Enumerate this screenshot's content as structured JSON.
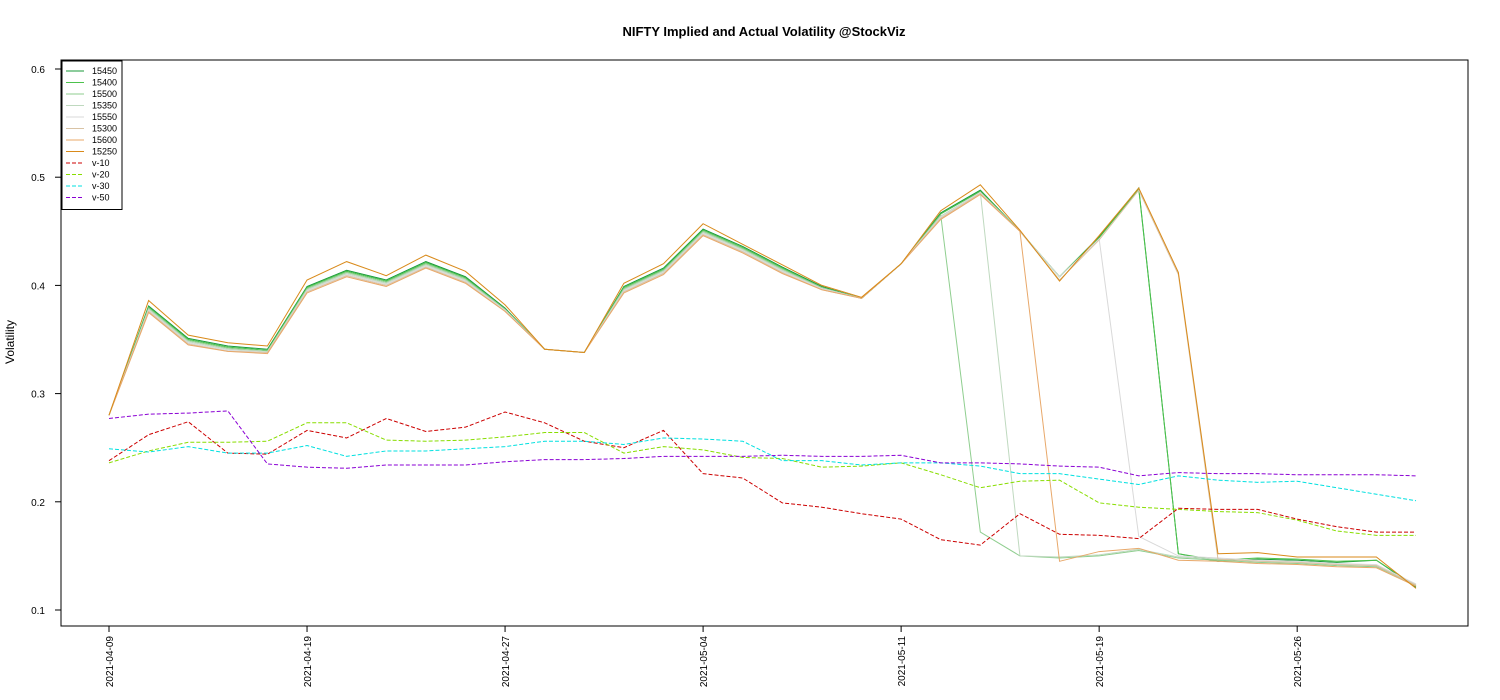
{
  "chart_data": {
    "type": "line",
    "title": "NIFTY Implied and Actual Volatility @StockViz",
    "ylabel": "Volatility",
    "xlabel": "",
    "ylim": [
      0.1,
      0.6
    ],
    "yticks": [
      "0.1",
      "0.2",
      "0.3",
      "0.4",
      "0.5",
      "0.6"
    ],
    "legend_position": "top-left",
    "grid": false,
    "x": [
      "2021-04-09",
      "2021-04-12",
      "2021-04-13",
      "2021-04-15",
      "2021-04-16",
      "2021-04-19",
      "2021-04-20",
      "2021-04-22",
      "2021-04-23",
      "2021-04-26",
      "2021-04-27",
      "2021-04-28",
      "2021-04-29",
      "2021-04-30",
      "2021-05-03",
      "2021-05-04",
      "2021-05-05",
      "2021-05-06",
      "2021-05-07",
      "2021-05-10",
      "2021-05-11",
      "2021-05-12",
      "2021-05-14",
      "2021-05-17",
      "2021-05-18",
      "2021-05-19",
      "2021-05-20",
      "2021-05-21",
      "2021-05-24",
      "2021-05-25",
      "2021-05-26",
      "2021-05-27",
      "2021-05-28",
      "2021-05-31"
    ],
    "xtick_labels": [
      "2021-04-09",
      "2021-04-19",
      "2021-04-27",
      "2021-05-04",
      "2021-05-11",
      "2021-05-19",
      "2021-05-26"
    ],
    "xtick_index": [
      0,
      5,
      10,
      15,
      20,
      25,
      30
    ],
    "series": [
      {
        "name": "15450",
        "color": "#1a9a3a",
        "dash": "solid",
        "values": [
          0.28,
          0.381,
          0.351,
          0.344,
          0.341,
          0.399,
          0.414,
          0.405,
          0.422,
          0.408,
          0.379,
          0.341,
          0.338,
          0.399,
          0.416,
          0.452,
          0.436,
          0.417,
          0.399,
          0.388,
          0.42,
          0.467,
          0.488,
          0.45,
          0.408,
          0.445,
          0.49,
          0.152,
          0.145,
          0.147,
          0.146,
          0.144,
          0.146,
          0.121
        ]
      },
      {
        "name": "15400",
        "color": "#4cc24c",
        "dash": "solid",
        "values": [
          0.28,
          0.38,
          0.35,
          0.343,
          0.34,
          0.398,
          0.413,
          0.404,
          0.421,
          0.407,
          0.378,
          0.341,
          0.338,
          0.398,
          0.415,
          0.451,
          0.435,
          0.416,
          0.398,
          0.388,
          0.42,
          0.466,
          0.487,
          0.45,
          0.408,
          0.444,
          0.489,
          0.152,
          0.146,
          0.148,
          0.147,
          0.145,
          0.146,
          0.122
        ]
      },
      {
        "name": "15500",
        "color": "#8fce8f",
        "dash": "solid",
        "values": [
          0.28,
          0.379,
          0.349,
          0.342,
          0.339,
          0.397,
          0.412,
          0.403,
          0.42,
          0.406,
          0.378,
          0.341,
          0.338,
          0.397,
          0.414,
          0.45,
          0.434,
          0.415,
          0.398,
          0.388,
          0.42,
          0.465,
          0.172,
          0.15,
          0.148,
          0.15,
          0.155,
          0.148,
          0.146,
          0.144,
          0.143,
          0.141,
          0.14,
          0.123
        ]
      },
      {
        "name": "15350",
        "color": "#bfd9bf",
        "dash": "solid",
        "values": [
          0.28,
          0.378,
          0.348,
          0.341,
          0.339,
          0.396,
          0.411,
          0.402,
          0.419,
          0.405,
          0.377,
          0.341,
          0.338,
          0.396,
          0.413,
          0.449,
          0.433,
          0.414,
          0.397,
          0.388,
          0.42,
          0.464,
          0.486,
          0.15,
          0.149,
          0.151,
          0.156,
          0.149,
          0.147,
          0.145,
          0.144,
          0.142,
          0.141,
          0.124
        ]
      },
      {
        "name": "15550",
        "color": "#d9d9d9",
        "dash": "solid",
        "values": [
          0.28,
          0.377,
          0.347,
          0.34,
          0.338,
          0.395,
          0.41,
          0.401,
          0.418,
          0.404,
          0.377,
          0.341,
          0.338,
          0.395,
          0.412,
          0.448,
          0.432,
          0.413,
          0.397,
          0.388,
          0.42,
          0.463,
          0.486,
          0.45,
          0.408,
          0.443,
          0.168,
          0.15,
          0.148,
          0.146,
          0.145,
          0.143,
          0.142,
          0.124
        ]
      },
      {
        "name": "15300",
        "color": "#d9c3a5",
        "dash": "solid",
        "values": [
          0.28,
          0.376,
          0.346,
          0.339,
          0.338,
          0.394,
          0.409,
          0.4,
          0.417,
          0.403,
          0.376,
          0.341,
          0.338,
          0.394,
          0.411,
          0.447,
          0.431,
          0.412,
          0.396,
          0.388,
          0.42,
          0.462,
          0.485,
          0.45,
          0.405,
          0.442,
          0.488,
          0.41,
          0.147,
          0.145,
          0.144,
          0.142,
          0.141,
          0.123
        ]
      },
      {
        "name": "15600",
        "color": "#e8a86a",
        "dash": "solid",
        "values": [
          0.28,
          0.375,
          0.345,
          0.339,
          0.337,
          0.393,
          0.408,
          0.399,
          0.416,
          0.402,
          0.376,
          0.341,
          0.338,
          0.393,
          0.41,
          0.446,
          0.43,
          0.411,
          0.396,
          0.388,
          0.42,
          0.461,
          0.484,
          0.45,
          0.145,
          0.154,
          0.157,
          0.146,
          0.145,
          0.143,
          0.142,
          0.14,
          0.139,
          0.122
        ]
      },
      {
        "name": "15250",
        "color": "#d98a1a",
        "dash": "solid",
        "values": [
          0.28,
          0.386,
          0.354,
          0.347,
          0.344,
          0.405,
          0.422,
          0.409,
          0.428,
          0.413,
          0.382,
          0.341,
          0.338,
          0.402,
          0.42,
          0.457,
          0.438,
          0.419,
          0.4,
          0.389,
          0.42,
          0.469,
          0.493,
          0.451,
          0.404,
          0.446,
          0.49,
          0.412,
          0.152,
          0.153,
          0.149,
          0.149,
          0.149,
          0.12
        ]
      },
      {
        "name": "v-10",
        "color": "#cc0000",
        "dash": "4 2",
        "values": [
          0.238,
          0.262,
          0.274,
          0.245,
          0.244,
          0.266,
          0.259,
          0.277,
          0.265,
          0.269,
          0.283,
          0.273,
          0.256,
          0.25,
          0.266,
          0.226,
          0.222,
          0.199,
          0.195,
          0.189,
          0.184,
          0.165,
          0.16,
          0.189,
          0.17,
          0.169,
          0.166,
          0.194,
          0.193,
          0.193,
          0.184,
          0.177,
          0.172,
          0.172
        ]
      },
      {
        "name": "v-20",
        "color": "#88dd00",
        "dash": "4 2",
        "values": [
          0.236,
          0.247,
          0.255,
          0.255,
          0.256,
          0.273,
          0.273,
          0.257,
          0.256,
          0.257,
          0.26,
          0.264,
          0.264,
          0.245,
          0.251,
          0.248,
          0.241,
          0.24,
          0.232,
          0.233,
          0.236,
          0.225,
          0.213,
          0.219,
          0.22,
          0.199,
          0.195,
          0.193,
          0.191,
          0.19,
          0.183,
          0.173,
          0.169,
          0.169
        ]
      },
      {
        "name": "v-30",
        "color": "#00e0e0",
        "dash": "4 2",
        "values": [
          0.249,
          0.246,
          0.251,
          0.245,
          0.245,
          0.252,
          0.242,
          0.247,
          0.247,
          0.249,
          0.251,
          0.256,
          0.256,
          0.253,
          0.259,
          0.258,
          0.256,
          0.238,
          0.238,
          0.234,
          0.236,
          0.236,
          0.233,
          0.226,
          0.226,
          0.221,
          0.216,
          0.224,
          0.22,
          0.218,
          0.219,
          0.213,
          0.207,
          0.201
        ]
      },
      {
        "name": "v-50",
        "color": "#8a00d4",
        "dash": "4 2",
        "values": [
          0.277,
          0.281,
          0.282,
          0.284,
          0.235,
          0.232,
          0.231,
          0.234,
          0.234,
          0.234,
          0.237,
          0.239,
          0.239,
          0.24,
          0.242,
          0.242,
          0.242,
          0.243,
          0.242,
          0.242,
          0.243,
          0.236,
          0.236,
          0.235,
          0.233,
          0.232,
          0.224,
          0.227,
          0.226,
          0.226,
          0.225,
          0.225,
          0.225,
          0.224
        ]
      }
    ]
  }
}
